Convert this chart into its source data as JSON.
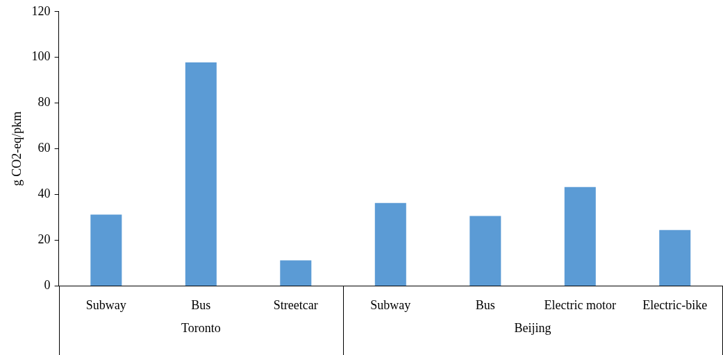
{
  "chart_data": {
    "type": "bar",
    "ylabel": "g CO2-eq/pkm",
    "categories": [
      "Subway",
      "Bus",
      "Streetcar",
      "Subway",
      "Bus",
      "Electric motor",
      "Electric-bike"
    ],
    "values": [
      31.2,
      97.8,
      11.2,
      36.3,
      30.6,
      43.3,
      24.5
    ],
    "color": "#5b9bd5",
    "ylim": [
      0,
      120
    ],
    "yticks": [
      0,
      20,
      40,
      60,
      80,
      100,
      120
    ],
    "grid": false,
    "annotations": [
      "Toronto",
      "Beijing"
    ]
  }
}
